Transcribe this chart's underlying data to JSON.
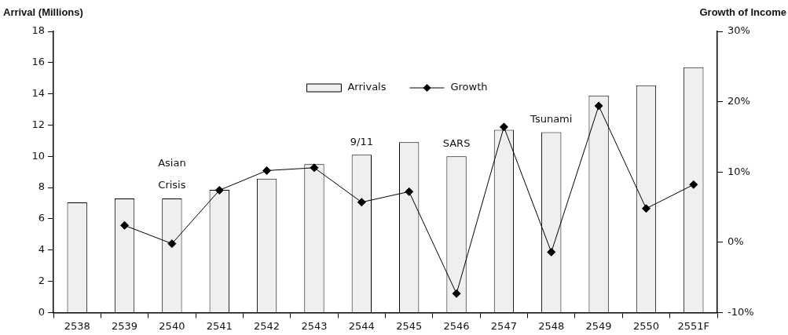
{
  "chart_data": {
    "type": "bar",
    "ylabel": "Arrival (Millions)",
    "y2label": "Growth of Income",
    "categories": [
      "2538",
      "2539",
      "2540",
      "2541",
      "2542",
      "2543",
      "2544",
      "2545",
      "2546",
      "2547",
      "2548",
      "2549",
      "2550",
      "2551F"
    ],
    "series": [
      {
        "name": "Arrivals",
        "color": "#efefef",
        "values": [
          7.05,
          7.3,
          7.3,
          7.85,
          8.57,
          9.5,
          10.1,
          10.9,
          10.0,
          11.7,
          11.55,
          13.9,
          14.55,
          15.7
        ]
      },
      {
        "name": "Growth",
        "type": "line",
        "axis": "y2",
        "color": "#000000",
        "marker": "diamond",
        "values": [
          null,
          2.4,
          -0.2,
          7.4,
          10.2,
          10.6,
          5.7,
          7.2,
          -7.3,
          16.4,
          -1.4,
          19.4,
          4.8,
          8.2
        ]
      }
    ],
    "ylim": [
      0,
      18
    ],
    "yticks": [
      0,
      2,
      4,
      6,
      8,
      10,
      12,
      14,
      16,
      18
    ],
    "y2lim": [
      -10,
      30
    ],
    "y2ticks": [
      {
        "value": -10,
        "label": "-10%"
      },
      {
        "value": 0,
        "label": "0%"
      },
      {
        "value": 10,
        "label": "10%"
      },
      {
        "value": 20,
        "label": "20%"
      },
      {
        "value": 30,
        "label": "30%"
      }
    ],
    "annotations": [
      {
        "text": "Asian Crisis",
        "x": "2540",
        "y": 7.3
      },
      {
        "text": "9/11",
        "x": "2544",
        "y": 10.1
      },
      {
        "text": "SARS",
        "x": "2546",
        "y": 10.0
      },
      {
        "text": "Tsunami",
        "x": "2548",
        "y": 11.55
      }
    ],
    "legend": "top"
  }
}
